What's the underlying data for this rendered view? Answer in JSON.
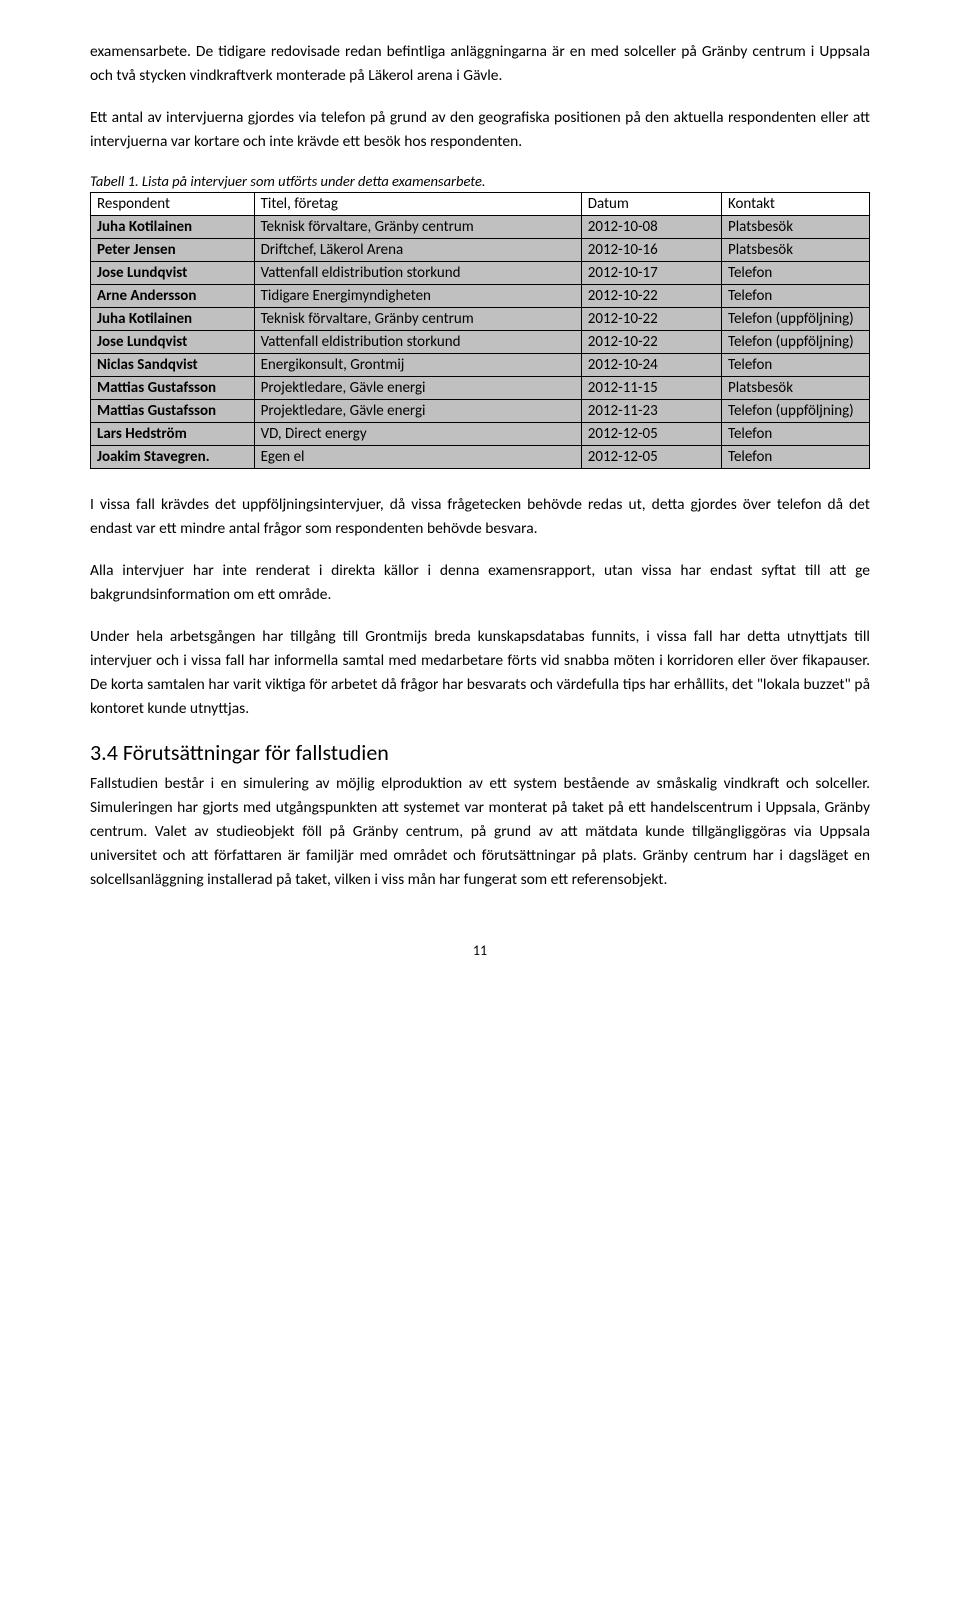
{
  "paragraphs": {
    "p1": "examensarbete. De tidigare redovisade redan befintliga anläggningarna är en med solceller på Gränby centrum i Uppsala och två stycken vindkraftverk monterade på Läkerol arena i Gävle.",
    "p2": "Ett antal av intervjuerna gjordes via telefon på grund av den geografiska positionen på den aktuella respondenten eller att intervjuerna var kortare och inte krävde ett besök hos respondenten.",
    "p3": "I vissa fall krävdes det uppföljningsintervjuer, då vissa frågetecken behövde redas ut, detta gjordes över telefon då det endast var ett mindre antal frågor som respondenten behövde besvara.",
    "p4": "Alla intervjuer har inte renderat i direkta källor i denna examensrapport, utan vissa har endast syftat till att ge bakgrundsinformation om ett område.",
    "p5": "Under hela arbetsgången har tillgång till Grontmijs breda kunskapsdatabas funnits, i vissa fall har detta utnyttjats till intervjuer och i vissa fall har informella samtal med medarbetare förts vid snabba möten i korridoren eller över fikapauser. De korta samtalen har varit viktiga för arbetet då frågor har besvarats och värdefulla tips har erhållits, det \"lokala buzzet\" på kontoret kunde utnyttjas.",
    "p6": "Fallstudien består i en simulering av möjlig elproduktion av ett system bestående av småskalig vindkraft och solceller. Simuleringen har gjorts med utgångspunkten att systemet var monterat på taket på ett handelscentrum i Uppsala, Gränby centrum. Valet av studieobjekt föll på Gränby centrum, på grund av att mätdata kunde tillgängliggöras via Uppsala universitet och att författaren är familjär med området och förutsättningar på plats.  Gränby centrum har i dagsläget en solcellsanläggning installerad på taket, vilken i viss mån har fungerat som ett referensobjekt."
  },
  "table": {
    "caption": "Tabell 1. Lista på intervjuer som utförts under detta examensarbete.",
    "headers": [
      "Respondent",
      "Titel, företag",
      "Datum",
      "Kontakt"
    ],
    "rows": [
      {
        "respondent": "Juha Kotilainen",
        "titel": "Teknisk förvaltare, Gränby centrum",
        "datum": "2012-10-08",
        "kontakt": "Platsbesök"
      },
      {
        "respondent": "Peter Jensen",
        "titel": "Driftchef, Läkerol Arena",
        "datum": "2012-10-16",
        "kontakt": "Platsbesök"
      },
      {
        "respondent": "Jose Lundqvist",
        "titel": "Vattenfall eldistribution storkund",
        "datum": "2012-10-17",
        "kontakt": "Telefon"
      },
      {
        "respondent": "Arne Andersson",
        "titel": "Tidigare Energimyndigheten",
        "datum": "2012-10-22",
        "kontakt": "Telefon"
      },
      {
        "respondent": "Juha Kotilainen",
        "titel": "Teknisk förvaltare, Gränby centrum",
        "datum": "2012-10-22",
        "kontakt": "Telefon (uppföljning)"
      },
      {
        "respondent": "Jose Lundqvist",
        "titel": "Vattenfall eldistribution storkund",
        "datum": "2012-10-22",
        "kontakt": "Telefon (uppföljning)"
      },
      {
        "respondent": "Niclas Sandqvist",
        "titel": "Energikonsult, Grontmij",
        "datum": "2012-10-24",
        "kontakt": "Telefon"
      },
      {
        "respondent": "Mattias Gustafsson",
        "titel": "Projektledare, Gävle energi",
        "datum": "2012-11-15",
        "kontakt": "Platsbesök"
      },
      {
        "respondent": "Mattias Gustafsson",
        "titel": "Projektledare, Gävle energi",
        "datum": "2012-11-23",
        "kontakt": "Telefon (uppföljning)"
      },
      {
        "respondent": "Lars Hedström",
        "titel": "VD, Direct energy",
        "datum": "2012-12-05",
        "kontakt": "Telefon"
      },
      {
        "respondent": "Joakim Stavegren.",
        "titel": "Egen el",
        "datum": "2012-12-05",
        "kontakt": "Telefon"
      }
    ],
    "cell_bg_color": "#c0c0c0",
    "border_color": "#000000",
    "font_size": 15
  },
  "section_heading": "3.4 Förutsättningar för fallstudien",
  "page_number": "11",
  "styles": {
    "body_font": "Gill Sans MT",
    "body_fontsize_pt": 12,
    "heading_fontsize_pt": 17,
    "text_color": "#000000",
    "bg_color": "#ffffff",
    "line_height": 1.55
  }
}
